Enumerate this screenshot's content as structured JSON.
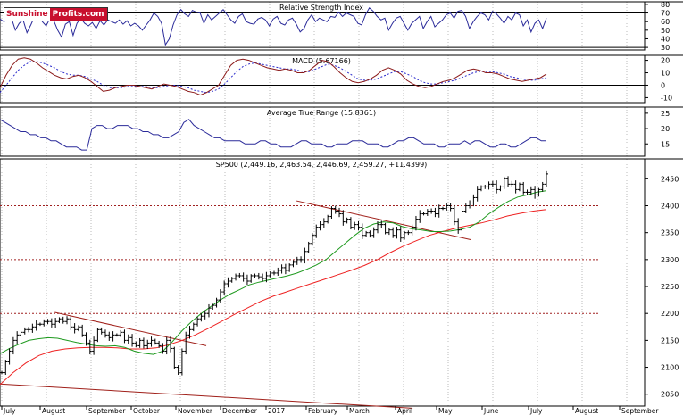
{
  "brand": {
    "part1": "Sunshine",
    "part2": "Profits.com"
  },
  "chart_data": [
    {
      "type": "line",
      "title": "Relative Strength Index",
      "y_ticks": [
        30,
        40,
        50,
        60,
        70,
        80
      ],
      "ylim": [
        27,
        83
      ],
      "hlines": [
        30,
        70
      ],
      "series": [
        {
          "values": [
            63,
            60,
            62,
            64,
            50,
            58,
            62,
            47,
            56,
            66,
            73,
            60,
            55,
            64,
            61,
            50,
            42,
            57,
            60,
            44,
            58,
            64,
            58,
            55,
            59,
            52,
            61,
            56,
            62,
            60,
            58,
            62,
            57,
            61,
            55,
            58,
            55,
            50,
            56,
            62,
            70,
            66,
            58,
            33,
            40,
            56,
            68,
            74,
            69,
            66,
            73,
            71,
            70,
            58,
            68,
            62,
            66,
            70,
            74,
            68,
            62,
            58,
            66,
            69,
            60,
            58,
            57,
            63,
            65,
            62,
            55,
            63,
            66,
            58,
            56,
            62,
            64,
            57,
            48,
            52,
            62,
            68,
            60,
            64,
            62,
            60,
            66,
            65,
            71,
            66,
            70,
            68,
            66,
            58,
            56,
            68,
            76,
            72,
            66,
            62,
            64,
            50,
            58,
            64,
            66,
            58,
            50,
            58,
            62,
            66,
            52,
            60,
            66,
            54,
            58,
            62,
            68,
            70,
            64,
            72,
            73,
            66,
            52,
            60,
            66,
            70,
            68,
            62,
            72,
            69,
            64,
            58,
            66,
            62,
            70,
            68,
            55,
            62,
            48,
            58,
            62,
            52,
            64
          ]
        }
      ],
      "colors": {
        "line": "#2b2b9a"
      }
    },
    {
      "type": "line",
      "title": "MACD (5.67166)",
      "y_ticks": [
        -10,
        0,
        10,
        20
      ],
      "ylim": [
        -14,
        24
      ],
      "series": [
        {
          "values": [
            -2,
            8,
            16,
            21,
            22,
            21,
            18,
            14,
            11,
            8,
            6,
            5,
            7,
            8,
            6,
            3,
            -1,
            -5,
            -4,
            -2,
            -1,
            0,
            0,
            -1,
            -2,
            -3,
            -1,
            1,
            0,
            -1,
            -3,
            -5,
            -6,
            -8,
            -6,
            -3,
            0,
            8,
            16,
            20,
            21,
            20,
            18,
            16,
            14,
            13,
            12,
            13,
            12,
            10,
            10,
            12,
            16,
            20,
            19,
            15,
            10,
            6,
            3,
            2,
            3,
            5,
            8,
            12,
            14,
            12,
            9,
            4,
            1,
            -1,
            -2,
            -1,
            1,
            3,
            4,
            6,
            9,
            12,
            13,
            12,
            10,
            10,
            9,
            7,
            5,
            4,
            3,
            4,
            5,
            6,
            9
          ]
        },
        {
          "values": [
            -6,
            0,
            6,
            12,
            16,
            19,
            19,
            18,
            16,
            14,
            11,
            9,
            8,
            8,
            7,
            5,
            3,
            0,
            -2,
            -2,
            -2,
            -1,
            -1,
            -1,
            -1,
            -2,
            -2,
            -1,
            0,
            0,
            -1,
            -2,
            -4,
            -5,
            -6,
            -5,
            -3,
            1,
            6,
            11,
            15,
            17,
            18,
            17,
            16,
            15,
            14,
            13,
            13,
            12,
            11,
            11,
            13,
            15,
            17,
            16,
            14,
            11,
            8,
            5,
            4,
            4,
            5,
            7,
            9,
            11,
            11,
            9,
            7,
            4,
            2,
            1,
            1,
            2,
            3,
            4,
            6,
            8,
            10,
            11,
            11,
            11,
            10,
            9,
            7,
            6,
            5,
            4,
            4,
            5,
            6
          ]
        }
      ],
      "colors": {
        "macd": "#8b1a1a",
        "signal": "#2b2bcc"
      }
    },
    {
      "type": "line",
      "title": "Average True Range (15.8361)",
      "y_ticks": [
        15,
        20,
        25
      ],
      "ylim": [
        11,
        27
      ],
      "series": [
        {
          "values": [
            23,
            22,
            21,
            20,
            19,
            19,
            18,
            18,
            17,
            17,
            16,
            16,
            15,
            14,
            14,
            14,
            13,
            13,
            20,
            21,
            21,
            20,
            20,
            21,
            21,
            21,
            20,
            20,
            19,
            19,
            18,
            18,
            17,
            17,
            18,
            19,
            22,
            23,
            21,
            20,
            19,
            18,
            17,
            17,
            16,
            16,
            16,
            16,
            15,
            15,
            15,
            16,
            16,
            15,
            15,
            14,
            14,
            14,
            15,
            16,
            16,
            15,
            15,
            15,
            14,
            14,
            15,
            15,
            15,
            16,
            16,
            16,
            15,
            15,
            15,
            14,
            14,
            15,
            16,
            16,
            17,
            17,
            16,
            15,
            15,
            15,
            14,
            14,
            15,
            15,
            15,
            16,
            15,
            16,
            16,
            15,
            14,
            14,
            15,
            15,
            14,
            14,
            15,
            16,
            17,
            17,
            16,
            16
          ]
        }
      ],
      "colors": {
        "line": "#2b2b9a"
      }
    },
    {
      "type": "candlestick",
      "title": "SP500 (2,449.16, 2,463.54, 2,446.69, 2,459.27, +11.4399)",
      "y_ticks": [
        2050,
        2100,
        2150,
        2200,
        2250,
        2300,
        2350,
        2400,
        2450
      ],
      "ylim": [
        2028,
        2487
      ],
      "x_ticks": [
        "July",
        "August",
        "September",
        "October",
        "November",
        "December",
        "2017",
        "February",
        "March",
        "April",
        "May",
        "June",
        "July",
        "August",
        "September"
      ],
      "horizontal_levels": [
        2200,
        2300,
        2400
      ],
      "closes": [
        2090,
        2110,
        2130,
        2150,
        2160,
        2165,
        2170,
        2170,
        2175,
        2180,
        2180,
        2185,
        2185,
        2180,
        2185,
        2190,
        2185,
        2190,
        2175,
        2170,
        2175,
        2160,
        2145,
        2130,
        2150,
        2170,
        2165,
        2160,
        2155,
        2160,
        2160,
        2165,
        2150,
        2155,
        2145,
        2140,
        2150,
        2140,
        2145,
        2150,
        2145,
        2140,
        2130,
        2150,
        2135,
        2100,
        2090,
        2130,
        2160,
        2170,
        2180,
        2190,
        2195,
        2200,
        2210,
        2215,
        2225,
        2240,
        2255,
        2260,
        2265,
        2270,
        2270,
        2265,
        2260,
        2270,
        2270,
        2268,
        2265,
        2270,
        2275,
        2275,
        2280,
        2285,
        2280,
        2290,
        2295,
        2300,
        2300,
        2315,
        2330,
        2345,
        2360,
        2365,
        2370,
        2380,
        2395,
        2390,
        2385,
        2370,
        2375,
        2360,
        2365,
        2360,
        2345,
        2350,
        2345,
        2355,
        2365,
        2365,
        2350,
        2355,
        2345,
        2355,
        2340,
        2350,
        2350,
        2360,
        2375,
        2385,
        2385,
        2390,
        2390,
        2385,
        2395,
        2395,
        2400,
        2395,
        2370,
        2355,
        2390,
        2400,
        2405,
        2415,
        2430,
        2435,
        2435,
        2440,
        2440,
        2430,
        2435,
        2450,
        2440,
        2440,
        2430,
        2440,
        2425,
        2425,
        2430,
        2420,
        2430,
        2440,
        2459
      ],
      "ma_green": [
        2125,
        2135,
        2143,
        2150,
        2153,
        2155,
        2154,
        2150,
        2146,
        2143,
        2140,
        2139,
        2140,
        2137,
        2130,
        2126,
        2124,
        2130,
        2148,
        2168,
        2185,
        2200,
        2213,
        2225,
        2236,
        2244,
        2253,
        2258,
        2262,
        2266,
        2270,
        2275,
        2282,
        2290,
        2300,
        2315,
        2330,
        2345,
        2358,
        2366,
        2370,
        2368,
        2361,
        2357,
        2355,
        2352,
        2352,
        2353,
        2356,
        2360,
        2370,
        2385,
        2397,
        2408,
        2416,
        2420,
        2425,
        2428
      ],
      "ma_red": [
        2068,
        2090,
        2108,
        2122,
        2130,
        2134,
        2136,
        2137,
        2137,
        2136,
        2134,
        2134,
        2136,
        2142,
        2150,
        2160,
        2172,
        2185,
        2198,
        2210,
        2222,
        2232,
        2240,
        2248,
        2256,
        2264,
        2272,
        2280,
        2289,
        2300,
        2313,
        2325,
        2335,
        2345,
        2352,
        2358,
        2363,
        2368,
        2374,
        2381,
        2386,
        2390,
        2393
      ],
      "trendlines": [
        {
          "p1": [
            0.085,
            2202
          ],
          "p2": [
            0.32,
            2140
          ]
        },
        {
          "p1": [
            0.46,
            2409
          ],
          "p2": [
            0.73,
            2337
          ]
        },
        {
          "p1": [
            0.0,
            2069
          ],
          "p2": [
            0.64,
            2024
          ]
        }
      ],
      "colors": {
        "bars": "#000000",
        "ma_green": "#1f9a1f",
        "ma_red": "#ee2222",
        "trend": "#a0201a",
        "levels": "#a02020"
      }
    }
  ]
}
